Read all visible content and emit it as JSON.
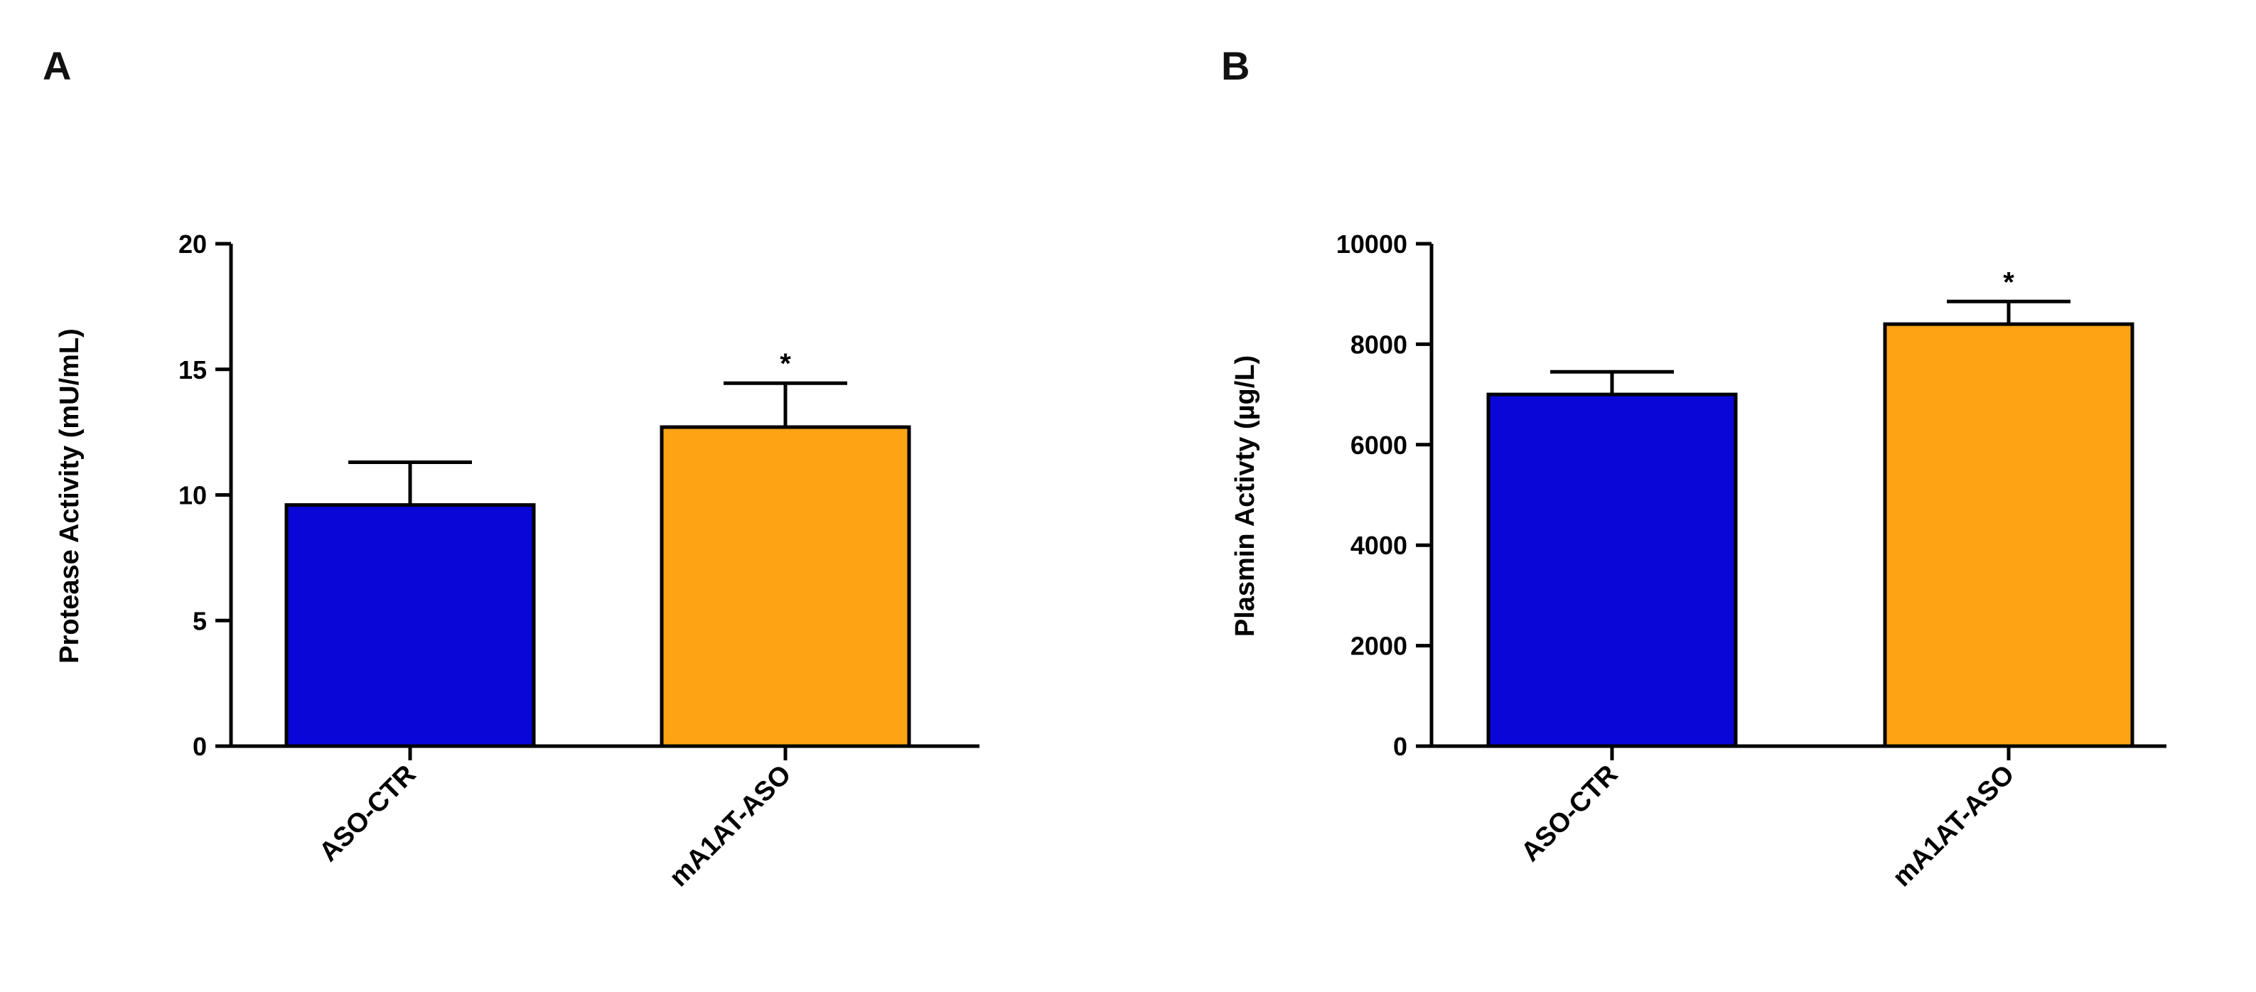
{
  "chart_data": [
    {
      "panel": "A",
      "type": "bar",
      "categories": [
        "ASO-CTR",
        "mA1AT-ASO"
      ],
      "values": [
        9.6,
        12.7
      ],
      "errors": [
        1.7,
        1.75
      ],
      "significance": [
        "",
        "*"
      ],
      "colors": [
        "#0a06d8",
        "#fda314"
      ],
      "title": "",
      "xlabel": "",
      "ylabel": "Protease Activity (mU/mL)",
      "ylim": [
        0,
        20
      ],
      "yticks": [
        0,
        5,
        10,
        15,
        20
      ],
      "ytick_labels": [
        "0",
        "5",
        "10",
        "15",
        "20"
      ]
    },
    {
      "panel": "B",
      "type": "bar",
      "categories": [
        "ASO-CTR",
        "mA1AT-ASO"
      ],
      "values": [
        7000,
        8400
      ],
      "errors": [
        450,
        450
      ],
      "significance": [
        "",
        "*"
      ],
      "colors": [
        "#0a06d8",
        "#fda314"
      ],
      "title": "",
      "xlabel": "",
      "ylabel": "Plasmin Activty (µg/L)",
      "ylim": [
        0,
        10000
      ],
      "yticks": [
        0,
        2000,
        4000,
        6000,
        8000,
        10000
      ],
      "ytick_labels": [
        "0",
        "2000",
        "4000",
        "6000",
        "8000",
        "10000"
      ]
    }
  ]
}
